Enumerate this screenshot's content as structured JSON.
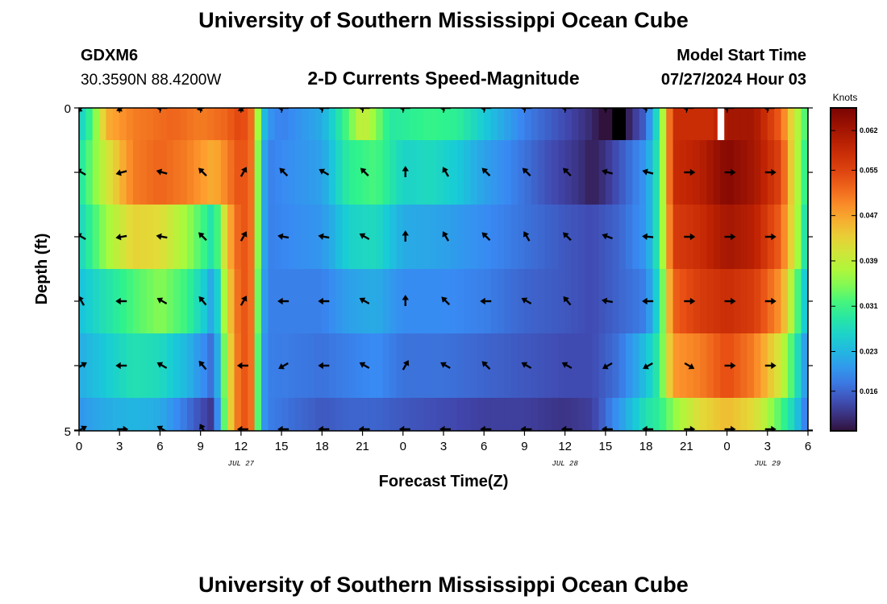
{
  "header": {
    "title": "University of Southern Mississippi Ocean Cube",
    "station_id": "GDXM6",
    "coordinates": "30.3590N  88.4200W",
    "subtitle": "2-D Currents Speed-Magnitude",
    "model_start_label": "Model Start Time",
    "model_start_value": "07/27/2024 Hour 03"
  },
  "footer": {
    "title": "University of Southern Mississippi Ocean Cube"
  },
  "chart_data": {
    "type": "heatmap",
    "title": "2-D Currents Speed-Magnitude",
    "xlabel": "Forecast Time(Z)",
    "ylabel": "Depth (ft)",
    "x_range_hours": [
      0,
      54
    ],
    "y_range_ft": [
      0,
      5
    ],
    "x_tick_labels": [
      "0",
      "3",
      "6",
      "9",
      "12",
      "15",
      "18",
      "21",
      "0",
      "3",
      "6",
      "9",
      "12",
      "15",
      "18",
      "21",
      "0",
      "3",
      "6"
    ],
    "y_tick_labels": [
      "0",
      "5"
    ],
    "date_labels": [
      {
        "label": "JUL 27",
        "hour": 12
      },
      {
        "label": "JUL 28",
        "hour": 36
      },
      {
        "label": "JUL 29",
        "hour": 51
      }
    ],
    "colorbar": {
      "units": "Knots",
      "range": [
        0.009,
        0.066
      ],
      "tick_labels": [
        "0.062",
        "0.055",
        "0.047",
        "0.039",
        "0.031",
        "0.023",
        "0.016"
      ],
      "tick_values": [
        0.062,
        0.055,
        0.047,
        0.039,
        0.031,
        0.023,
        0.016
      ]
    },
    "depth_rows_ft": [
      0.25,
      1.25,
      2.25,
      3.25,
      4.25,
      5.0
    ],
    "speed_profiles": [
      [
        [
          0,
          0.025
        ],
        [
          1,
          0.032
        ],
        [
          2,
          0.046
        ],
        [
          4,
          0.05
        ],
        [
          7,
          0.052
        ],
        [
          9,
          0.05
        ],
        [
          11,
          0.052
        ],
        [
          12,
          0.055
        ],
        [
          13,
          0.05
        ],
        [
          13.4,
          0.028
        ],
        [
          14,
          0.02
        ],
        [
          15,
          0.018
        ],
        [
          18,
          0.022
        ],
        [
          19,
          0.027
        ],
        [
          20,
          0.033
        ],
        [
          21,
          0.04
        ],
        [
          22,
          0.035
        ],
        [
          23,
          0.029
        ],
        [
          26,
          0.031
        ],
        [
          28,
          0.03
        ],
        [
          30,
          0.025
        ],
        [
          33,
          0.018
        ],
        [
          36,
          0.014
        ],
        [
          38,
          0.011
        ],
        [
          39,
          0.008
        ],
        [
          40,
          0.006
        ],
        [
          41,
          0.012
        ],
        [
          42,
          0.016
        ],
        [
          43,
          0.03
        ],
        [
          44,
          0.058
        ],
        [
          47,
          0.058
        ],
        [
          48,
          0.062
        ],
        [
          50,
          0.062
        ],
        [
          52,
          0.052
        ],
        [
          53,
          0.04
        ],
        [
          54,
          0.03
        ]
      ],
      [
        [
          0,
          0.028
        ],
        [
          2,
          0.04
        ],
        [
          4,
          0.05
        ],
        [
          6,
          0.052
        ],
        [
          8,
          0.05
        ],
        [
          10,
          0.046
        ],
        [
          11,
          0.05
        ],
        [
          12,
          0.054
        ],
        [
          13,
          0.05
        ],
        [
          13.4,
          0.026
        ],
        [
          14,
          0.018
        ],
        [
          18,
          0.021
        ],
        [
          20,
          0.03
        ],
        [
          22,
          0.032
        ],
        [
          24,
          0.026
        ],
        [
          26,
          0.027
        ],
        [
          28,
          0.025
        ],
        [
          30,
          0.021
        ],
        [
          33,
          0.017
        ],
        [
          35,
          0.014
        ],
        [
          37,
          0.012
        ],
        [
          38,
          0.01
        ],
        [
          39,
          0.012
        ],
        [
          42,
          0.02
        ],
        [
          43,
          0.03
        ],
        [
          44,
          0.058
        ],
        [
          46,
          0.06
        ],
        [
          48,
          0.065
        ],
        [
          50,
          0.062
        ],
        [
          52,
          0.055
        ],
        [
          53,
          0.04
        ],
        [
          54,
          0.028
        ]
      ],
      [
        [
          0,
          0.026
        ],
        [
          2,
          0.036
        ],
        [
          4,
          0.043
        ],
        [
          6,
          0.042
        ],
        [
          8,
          0.036
        ],
        [
          9.5,
          0.03
        ],
        [
          10,
          0.027
        ],
        [
          11,
          0.045
        ],
        [
          12,
          0.054
        ],
        [
          13,
          0.05
        ],
        [
          13.4,
          0.026
        ],
        [
          14,
          0.018
        ],
        [
          18,
          0.02
        ],
        [
          20,
          0.026
        ],
        [
          22,
          0.027
        ],
        [
          24,
          0.022
        ],
        [
          27,
          0.021
        ],
        [
          30,
          0.019
        ],
        [
          33,
          0.017
        ],
        [
          36,
          0.015
        ],
        [
          38,
          0.014
        ],
        [
          40,
          0.016
        ],
        [
          42,
          0.02
        ],
        [
          43,
          0.03
        ],
        [
          44,
          0.056
        ],
        [
          46,
          0.058
        ],
        [
          48,
          0.062
        ],
        [
          50,
          0.06
        ],
        [
          52,
          0.052
        ],
        [
          53,
          0.04
        ],
        [
          54,
          0.025
        ]
      ],
      [
        [
          0,
          0.024
        ],
        [
          2,
          0.028
        ],
        [
          4,
          0.032
        ],
        [
          6,
          0.035
        ],
        [
          8,
          0.031
        ],
        [
          9.5,
          0.024
        ],
        [
          10,
          0.02
        ],
        [
          11,
          0.042
        ],
        [
          12,
          0.054
        ],
        [
          13,
          0.05
        ],
        [
          13.4,
          0.024
        ],
        [
          14,
          0.018
        ],
        [
          18,
          0.018
        ],
        [
          20,
          0.021
        ],
        [
          22,
          0.022
        ],
        [
          24,
          0.019
        ],
        [
          27,
          0.019
        ],
        [
          30,
          0.018
        ],
        [
          33,
          0.016
        ],
        [
          36,
          0.015
        ],
        [
          38,
          0.014
        ],
        [
          40,
          0.016
        ],
        [
          42,
          0.018
        ],
        [
          43,
          0.028
        ],
        [
          44,
          0.052
        ],
        [
          46,
          0.056
        ],
        [
          48,
          0.058
        ],
        [
          50,
          0.056
        ],
        [
          52,
          0.048
        ],
        [
          53,
          0.035
        ],
        [
          54,
          0.022
        ]
      ],
      [
        [
          0,
          0.022
        ],
        [
          2,
          0.025
        ],
        [
          4,
          0.028
        ],
        [
          6,
          0.027
        ],
        [
          8,
          0.023
        ],
        [
          9.5,
          0.018
        ],
        [
          10,
          0.016
        ],
        [
          11,
          0.04
        ],
        [
          12,
          0.054
        ],
        [
          13,
          0.05
        ],
        [
          13.4,
          0.022
        ],
        [
          14,
          0.018
        ],
        [
          18,
          0.017
        ],
        [
          20,
          0.018
        ],
        [
          22,
          0.019
        ],
        [
          24,
          0.017
        ],
        [
          27,
          0.017
        ],
        [
          30,
          0.016
        ],
        [
          33,
          0.015
        ],
        [
          36,
          0.014
        ],
        [
          38,
          0.014
        ],
        [
          40,
          0.017
        ],
        [
          42,
          0.024
        ],
        [
          43,
          0.03
        ],
        [
          44,
          0.048
        ],
        [
          46,
          0.05
        ],
        [
          48,
          0.054
        ],
        [
          50,
          0.05
        ],
        [
          52,
          0.04
        ],
        [
          53,
          0.03
        ],
        [
          54,
          0.018
        ]
      ],
      [
        [
          0,
          0.02
        ],
        [
          2,
          0.022
        ],
        [
          4,
          0.023
        ],
        [
          6,
          0.022
        ],
        [
          8,
          0.017
        ],
        [
          9.5,
          0.013
        ],
        [
          10,
          0.012
        ],
        [
          11,
          0.04
        ],
        [
          12,
          0.054
        ],
        [
          13,
          0.05
        ],
        [
          13.4,
          0.022
        ],
        [
          14,
          0.018
        ],
        [
          18,
          0.015
        ],
        [
          20,
          0.016
        ],
        [
          22,
          0.016
        ],
        [
          24,
          0.015
        ],
        [
          27,
          0.014
        ],
        [
          30,
          0.013
        ],
        [
          33,
          0.013
        ],
        [
          36,
          0.012
        ],
        [
          38,
          0.013
        ],
        [
          40,
          0.02
        ],
        [
          42,
          0.028
        ],
        [
          43,
          0.03
        ],
        [
          44,
          0.035
        ],
        [
          46,
          0.042
        ],
        [
          48,
          0.045
        ],
        [
          50,
          0.042
        ],
        [
          52,
          0.032
        ],
        [
          53,
          0.026
        ],
        [
          54,
          0.016
        ]
      ]
    ],
    "special_cells": [
      {
        "x0": 39.5,
        "x1": 40.5,
        "row": 0,
        "color": "#000000"
      },
      {
        "x0": 47.3,
        "x1": 47.8,
        "row": 0,
        "color": "#ffffff"
      }
    ],
    "vector_times_hours": [
      0,
      3,
      6,
      9,
      12,
      15,
      18,
      21,
      24,
      27,
      30,
      33,
      36,
      39,
      42,
      45,
      48,
      51
    ],
    "vector_directions_deg": [
      [
        230,
        240,
        270,
        255,
        240,
        270,
        270,
        270,
        270,
        270,
        270,
        270,
        270,
        270,
        270,
        270,
        270,
        270
      ],
      [
        300,
        255,
        285,
        315,
        30,
        315,
        300,
        315,
        0,
        330,
        315,
        315,
        315,
        285,
        285,
        90,
        90,
        90
      ],
      [
        300,
        260,
        280,
        315,
        30,
        280,
        280,
        300,
        0,
        330,
        315,
        330,
        315,
        290,
        275,
        90,
        90,
        90
      ],
      [
        330,
        270,
        300,
        320,
        30,
        270,
        270,
        300,
        0,
        315,
        270,
        300,
        320,
        280,
        270,
        90,
        90,
        90
      ],
      [
        60,
        270,
        300,
        320,
        270,
        240,
        270,
        300,
        30,
        300,
        315,
        300,
        300,
        240,
        240,
        120,
        90,
        90
      ],
      [
        60,
        90,
        300,
        330,
        270,
        270,
        270,
        270,
        270,
        270,
        270,
        270,
        270,
        270,
        270,
        90,
        90,
        90
      ]
    ]
  }
}
